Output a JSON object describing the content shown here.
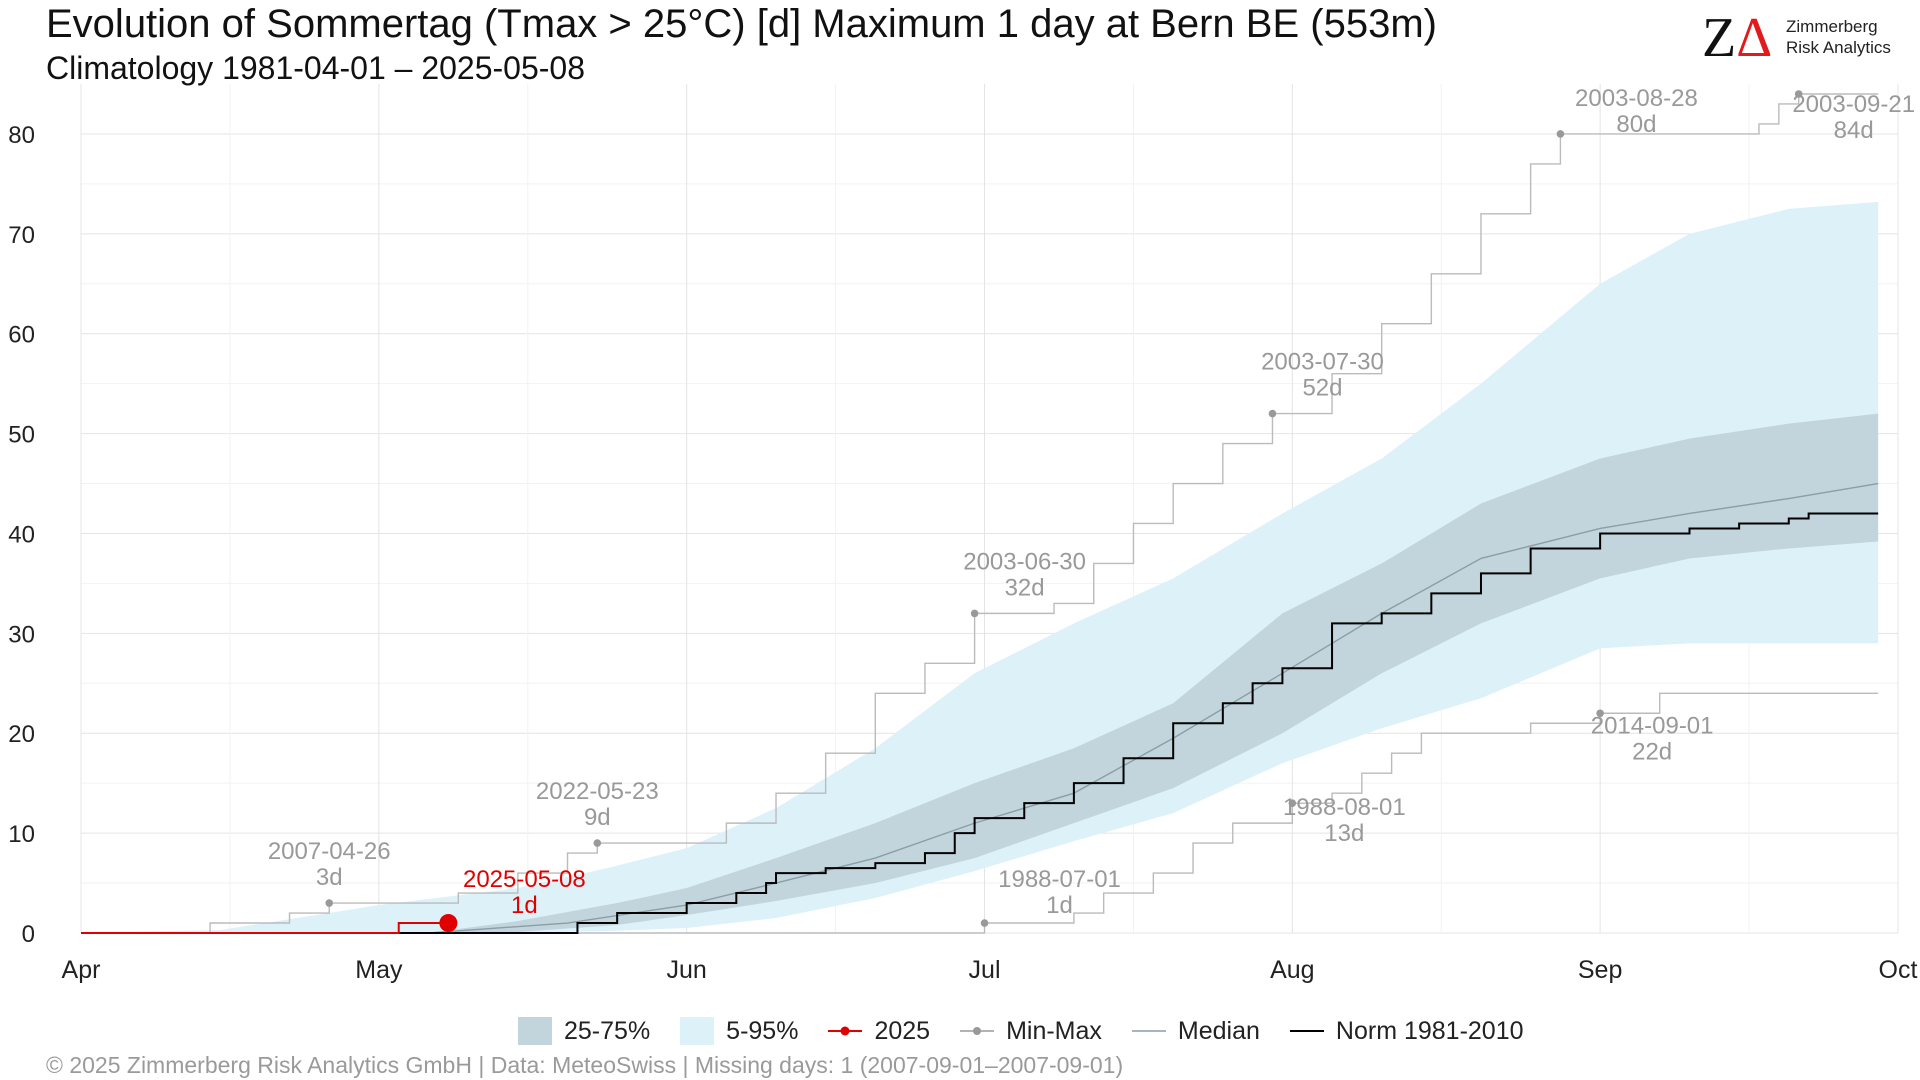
{
  "header": {
    "title": "Evolution of Sommertag (Tmax > 25°C) [d] Maximum 1 day at Bern  BE (553m)",
    "subtitle": "Climatology 1981-04-01 – 2025-05-08"
  },
  "logo": {
    "mark": "ZΔ",
    "line1": "Zimmerberg",
    "line2": "Risk Analytics"
  },
  "footer": {
    "text": "©  2025 Zimmerberg Risk Analytics GmbH | Data: MeteoSwiss | Missing days: 1 (2007-09-01–2007-09-01)"
  },
  "legend": {
    "band_25_75": "25-75%",
    "band_5_95": "5-95%",
    "current": "2025",
    "minmax": "Min-Max",
    "median": "Median",
    "norm": "Norm 1981-2010"
  },
  "colors": {
    "band_5_95": "#ddf1f9",
    "band_25_75": "#c2d5dc",
    "current": "#e00000",
    "minmax": "#bbbbbb",
    "minmax_point": "#999999",
    "median": "#8a9ea6",
    "norm": "#000000",
    "annotation": "#999999"
  },
  "chart_data": {
    "type": "area",
    "title": "Evolution of Sommertag (Tmax > 25°C) [d] Maximum 1 day at Bern  BE (553m)",
    "x_type": "day-of-year",
    "x_range": [
      "04-01",
      "09-29"
    ],
    "x_ticks": [
      {
        "date": "04-01",
        "label": "Apr"
      },
      {
        "date": "05-01",
        "label": "May"
      },
      {
        "date": "06-01",
        "label": "Jun"
      },
      {
        "date": "07-01",
        "label": "Jul"
      },
      {
        "date": "08-01",
        "label": "Aug"
      },
      {
        "date": "09-01",
        "label": "Sep"
      },
      {
        "date": "10-01",
        "label": "Oct"
      }
    ],
    "y_ticks": [
      0,
      10,
      20,
      30,
      40,
      50,
      60,
      70,
      80
    ],
    "ylim": [
      0,
      85
    ],
    "grid": true,
    "legend_position": "bottom",
    "band_5_95": {
      "name": "5-95%",
      "points": [
        [
          "04-01",
          0,
          0
        ],
        [
          "04-15",
          0,
          0.3
        ],
        [
          "04-26",
          0,
          2
        ],
        [
          "05-01",
          0,
          2.8
        ],
        [
          "05-15",
          0,
          4.5
        ],
        [
          "05-24",
          0.2,
          6.5
        ],
        [
          "06-01",
          0.5,
          8.5
        ],
        [
          "06-10",
          1.5,
          12.5
        ],
        [
          "06-20",
          3.5,
          18.5
        ],
        [
          "06-30",
          6.2,
          26
        ],
        [
          "07-10",
          9.2,
          31
        ],
        [
          "07-20",
          12,
          35.5
        ],
        [
          "07-31",
          17,
          42
        ],
        [
          "08-10",
          20.5,
          47.5
        ],
        [
          "08-20",
          23.5,
          55
        ],
        [
          "09-01",
          28.5,
          65
        ],
        [
          "09-10",
          29,
          70
        ],
        [
          "09-20",
          29,
          72.5
        ],
        [
          "09-29",
          29,
          73.2
        ]
      ]
    },
    "band_25_75": {
      "name": "25-75%",
      "points": [
        [
          "04-01",
          0,
          0
        ],
        [
          "05-06",
          0,
          0
        ],
        [
          "05-15",
          0.1,
          1.2
        ],
        [
          "05-25",
          0.8,
          3
        ],
        [
          "06-01",
          1.8,
          4.5
        ],
        [
          "06-10",
          3.2,
          7.5
        ],
        [
          "06-20",
          5,
          11
        ],
        [
          "06-30",
          7.5,
          15
        ],
        [
          "07-10",
          11,
          18.5
        ],
        [
          "07-20",
          14.5,
          23
        ],
        [
          "07-31",
          20,
          32
        ],
        [
          "08-10",
          26,
          37
        ],
        [
          "08-20",
          31,
          43
        ],
        [
          "09-01",
          35.5,
          47.5
        ],
        [
          "09-10",
          37.5,
          49.5
        ],
        [
          "09-20",
          38.5,
          51
        ],
        [
          "09-29",
          39.2,
          52
        ]
      ]
    },
    "median": {
      "name": "Median",
      "points": [
        [
          "04-01",
          0
        ],
        [
          "05-06",
          0
        ],
        [
          "05-20",
          1
        ],
        [
          "06-01",
          2.8
        ],
        [
          "06-10",
          5
        ],
        [
          "06-20",
          7.5
        ],
        [
          "06-30",
          11
        ],
        [
          "07-10",
          14
        ],
        [
          "07-20",
          19.5
        ],
        [
          "07-31",
          26
        ],
        [
          "08-10",
          32
        ],
        [
          "08-20",
          37.5
        ],
        [
          "09-01",
          40.5
        ],
        [
          "09-10",
          42
        ],
        [
          "09-20",
          43.5
        ],
        [
          "09-29",
          45
        ]
      ]
    },
    "norm_1981_2010": {
      "name": "Norm 1981-2010",
      "points": [
        [
          "04-01",
          0
        ],
        [
          "05-20",
          0
        ],
        [
          "05-21",
          1
        ],
        [
          "05-25",
          2
        ],
        [
          "06-01",
          3
        ],
        [
          "06-06",
          4
        ],
        [
          "06-09",
          5
        ],
        [
          "06-10",
          6
        ],
        [
          "06-15",
          6.5
        ],
        [
          "06-20",
          7
        ],
        [
          "06-25",
          8
        ],
        [
          "06-28",
          10
        ],
        [
          "06-30",
          11.5
        ],
        [
          "07-05",
          13
        ],
        [
          "07-10",
          15
        ],
        [
          "07-15",
          17.5
        ],
        [
          "07-20",
          21
        ],
        [
          "07-25",
          23
        ],
        [
          "07-28",
          25
        ],
        [
          "07-31",
          26.5
        ],
        [
          "08-05",
          31
        ],
        [
          "08-10",
          32
        ],
        [
          "08-15",
          34
        ],
        [
          "08-20",
          36
        ],
        [
          "08-25",
          38.5
        ],
        [
          "09-01",
          40
        ],
        [
          "09-10",
          40.5
        ],
        [
          "09-15",
          41
        ],
        [
          "09-20",
          41.5
        ],
        [
          "09-22",
          42
        ],
        [
          "09-29",
          42
        ]
      ]
    },
    "max_curve": {
      "name": "Max",
      "points": [
        [
          "04-01",
          0
        ],
        [
          "04-14",
          1
        ],
        [
          "04-22",
          2
        ],
        [
          "04-26",
          3
        ],
        [
          "05-09",
          4
        ],
        [
          "05-15",
          6
        ],
        [
          "05-20",
          8
        ],
        [
          "05-23",
          9
        ],
        [
          "05-31",
          9
        ],
        [
          "06-05",
          11
        ],
        [
          "06-10",
          14
        ],
        [
          "06-15",
          18
        ],
        [
          "06-20",
          24
        ],
        [
          "06-25",
          27
        ],
        [
          "06-30",
          32
        ],
        [
          "07-08",
          33
        ],
        [
          "07-12",
          37
        ],
        [
          "07-16",
          41
        ],
        [
          "07-20",
          45
        ],
        [
          "07-25",
          49
        ],
        [
          "07-30",
          52
        ],
        [
          "08-05",
          56
        ],
        [
          "08-10",
          61
        ],
        [
          "08-15",
          66
        ],
        [
          "08-20",
          72
        ],
        [
          "08-25",
          77
        ],
        [
          "08-28",
          80
        ],
        [
          "09-17",
          81
        ],
        [
          "09-19",
          83
        ],
        [
          "09-21",
          84
        ],
        [
          "09-29",
          84
        ]
      ]
    },
    "min_curve": {
      "name": "Min",
      "points": [
        [
          "04-01",
          0
        ],
        [
          "06-28",
          0
        ],
        [
          "07-01",
          1
        ],
        [
          "07-10",
          2
        ],
        [
          "07-13",
          4
        ],
        [
          "07-18",
          6
        ],
        [
          "07-22",
          9
        ],
        [
          "07-26",
          11
        ],
        [
          "08-01",
          13
        ],
        [
          "08-05",
          14
        ],
        [
          "08-08",
          16
        ],
        [
          "08-11",
          18
        ],
        [
          "08-14",
          20
        ],
        [
          "08-20",
          20
        ],
        [
          "08-25",
          21
        ],
        [
          "09-01",
          22
        ],
        [
          "09-07",
          24
        ],
        [
          "09-29",
          24
        ]
      ]
    },
    "current_year": {
      "name": "2025",
      "points": [
        [
          "04-01",
          0
        ],
        [
          "05-02",
          0
        ],
        [
          "05-03",
          1
        ],
        [
          "05-08",
          1
        ]
      ],
      "last_point": {
        "date": "2025-05-08",
        "value": 1,
        "label_date": "2025-05-08",
        "label_value": "1d"
      }
    },
    "annotations": [
      {
        "date": "2007-04-26",
        "md": "04-26",
        "value": 3,
        "label": "2007-04-26",
        "value_label": "3d",
        "kind": "max"
      },
      {
        "date": "2022-05-23",
        "md": "05-23",
        "value": 9,
        "label": "2022-05-23",
        "value_label": "9d",
        "kind": "max"
      },
      {
        "date": "2003-06-30",
        "md": "06-30",
        "value": 32,
        "label": "2003-06-30",
        "value_label": "32d",
        "kind": "max"
      },
      {
        "date": "2003-07-30",
        "md": "07-30",
        "value": 52,
        "label": "2003-07-30",
        "value_label": "52d",
        "kind": "max"
      },
      {
        "date": "2003-08-28",
        "md": "08-28",
        "value": 80,
        "label": "2003-08-28",
        "value_label": "80d",
        "kind": "max"
      },
      {
        "date": "2003-09-21",
        "md": "09-21",
        "value": 84,
        "label": "2003-09-21",
        "value_label": "84d",
        "kind": "max"
      },
      {
        "date": "1988-07-01",
        "md": "07-01",
        "value": 1,
        "label": "1988-07-01",
        "value_label": "1d",
        "kind": "min"
      },
      {
        "date": "1988-08-01",
        "md": "08-01",
        "value": 13,
        "label": "1988-08-01",
        "value_label": "13d",
        "kind": "min"
      },
      {
        "date": "2014-09-01",
        "md": "09-01",
        "value": 22,
        "label": "2014-09-01",
        "value_label": "22d",
        "kind": "min"
      }
    ]
  }
}
